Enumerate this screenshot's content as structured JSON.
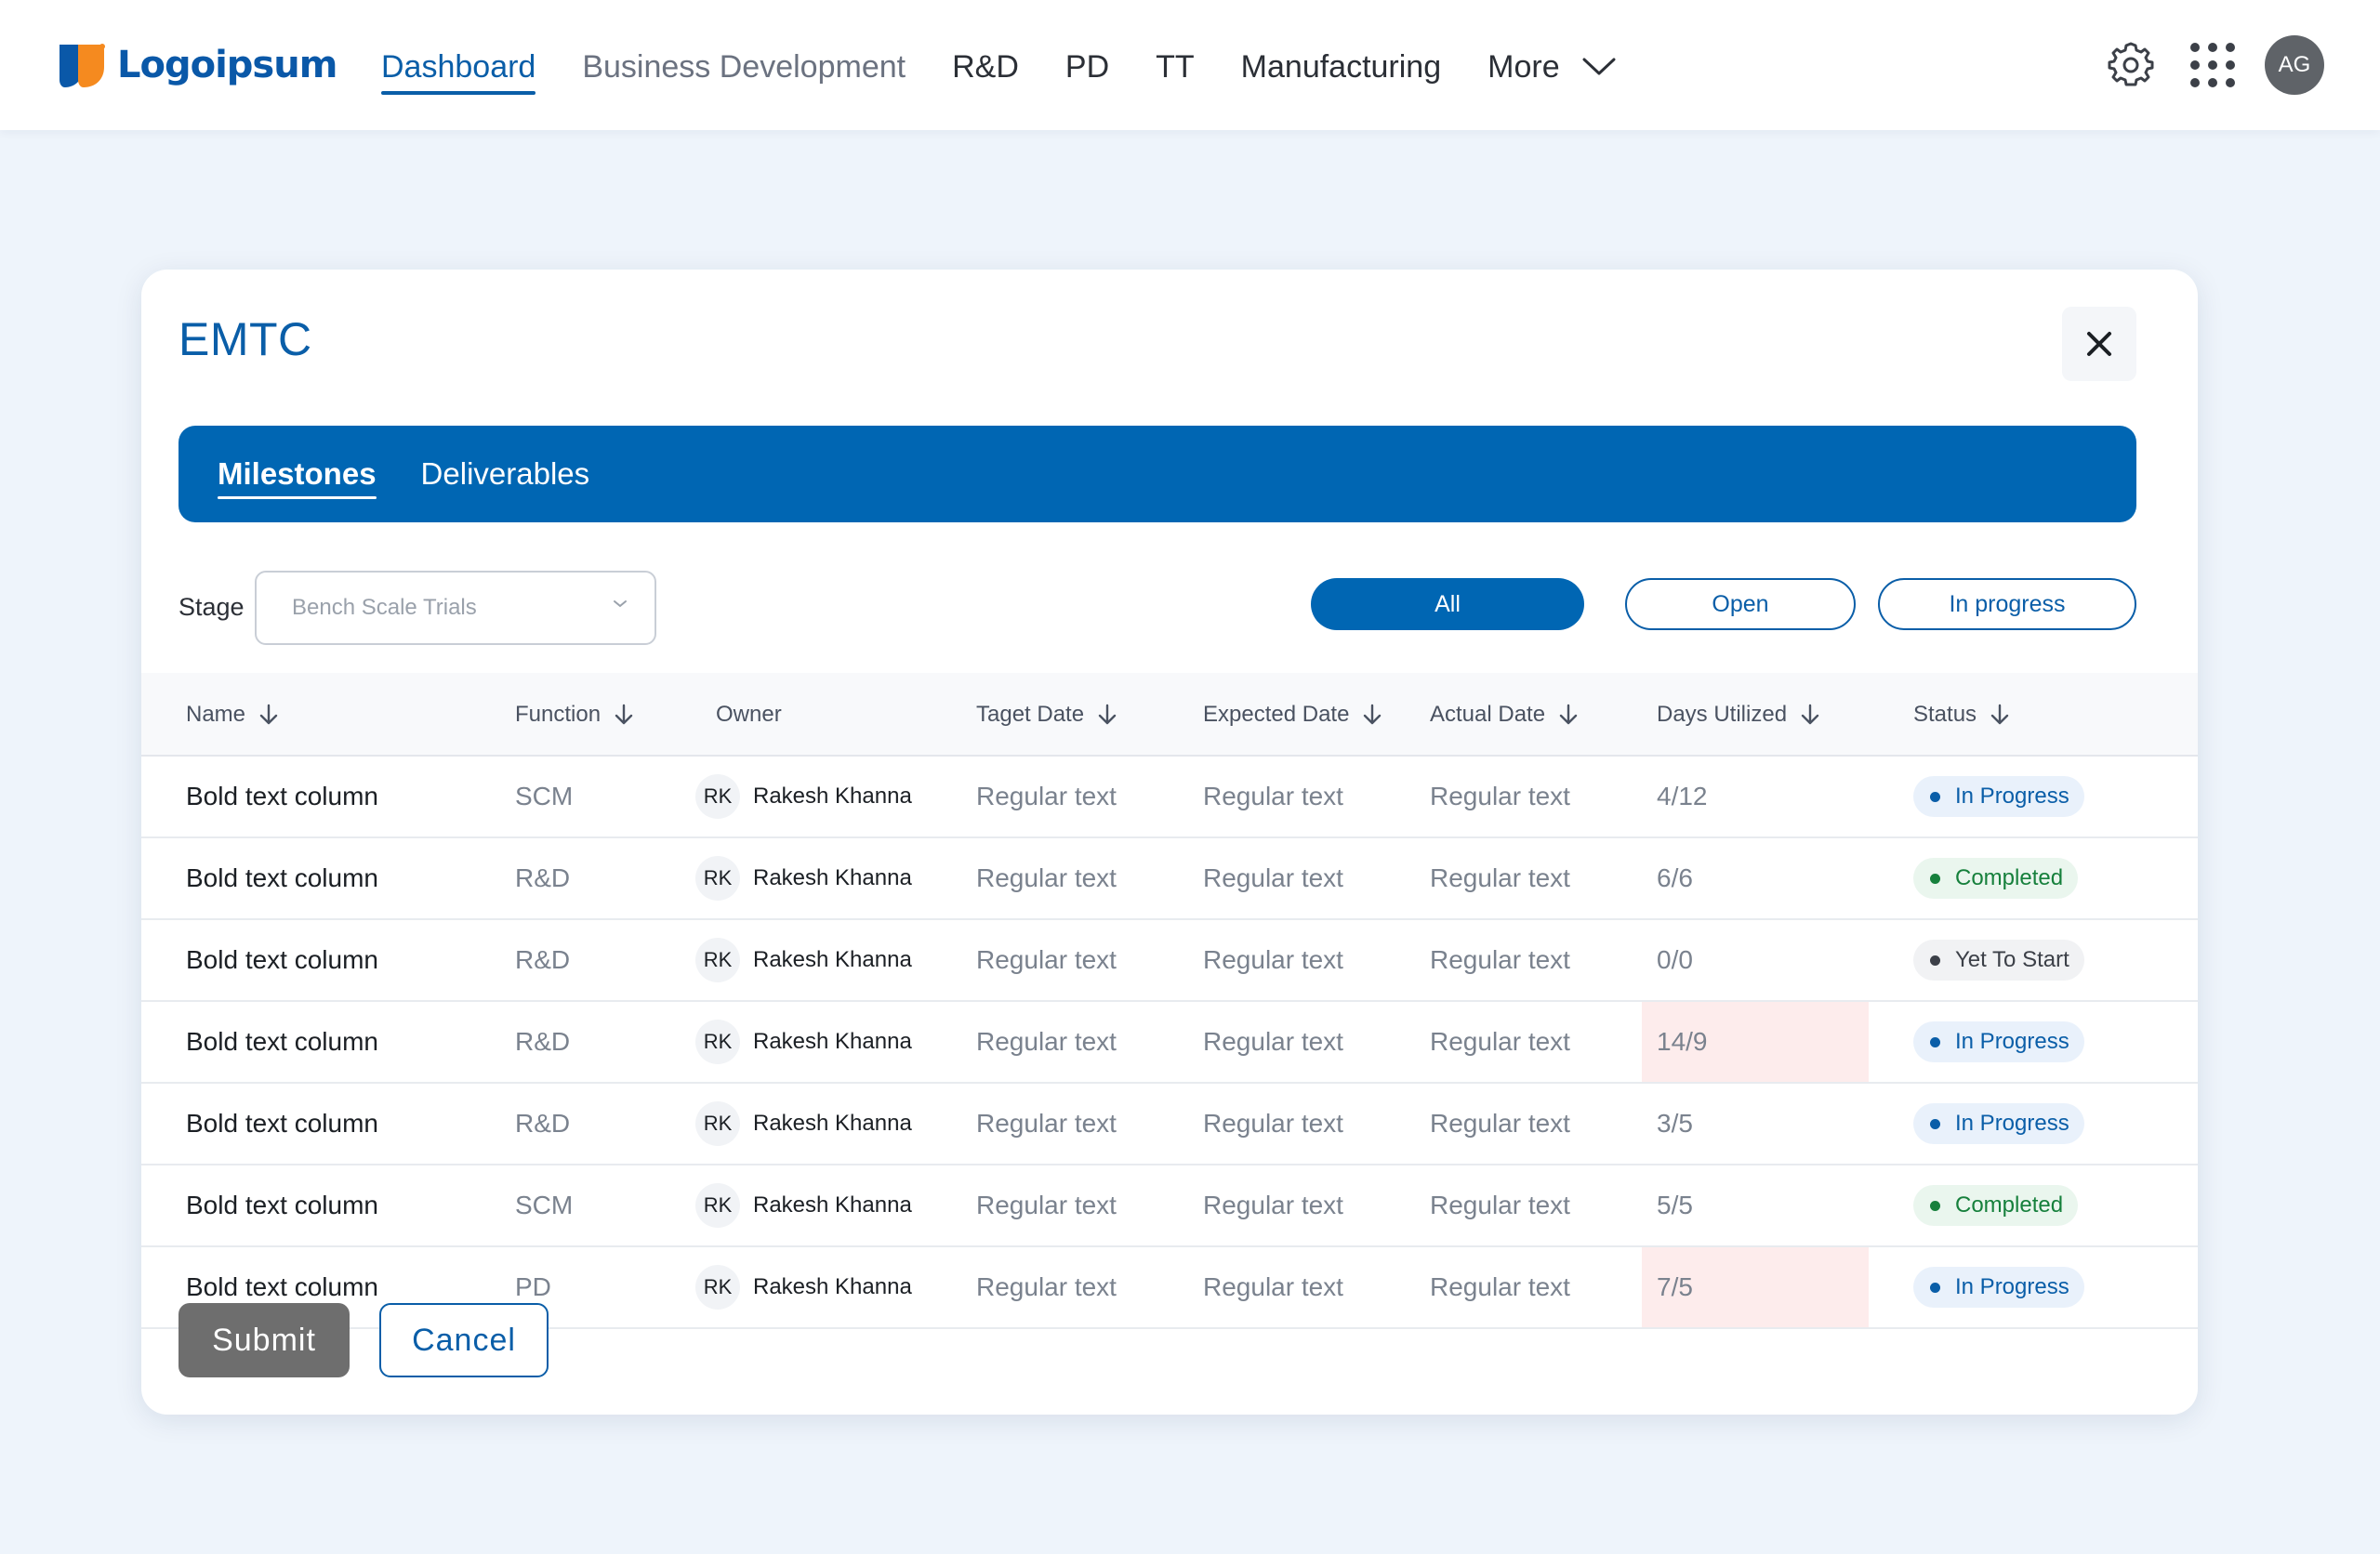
{
  "brand": {
    "name": "Logoipsum"
  },
  "nav": {
    "items": [
      {
        "label": "Dashboard",
        "state": "active"
      },
      {
        "label": "Business Development",
        "state": "inactive"
      },
      {
        "label": "R&D",
        "state": "normal"
      },
      {
        "label": "PD",
        "state": "normal"
      },
      {
        "label": "TT",
        "state": "normal"
      },
      {
        "label": "Manufacturing",
        "state": "normal"
      }
    ],
    "more_label": "More"
  },
  "user": {
    "initials": "AG"
  },
  "icons": {
    "settings": "gear-icon",
    "apps": "grid-icon",
    "close": "close-icon",
    "sort": "arrow-down-icon",
    "dropdown": "chevron-down-icon"
  },
  "colors": {
    "primary": "#0066b3",
    "accent_text": "#0a5ea8",
    "overdue_bg": "#fdecec",
    "in_progress": "#0a5ea8",
    "completed": "#16803c",
    "yet_to_start": "#3c4048"
  },
  "modal": {
    "title": "EMTC",
    "tabs": [
      {
        "label": "Milestones",
        "active": true
      },
      {
        "label": "Deliverables",
        "active": false
      }
    ],
    "stage": {
      "label": "Stage",
      "value": "Bench Scale Trials"
    },
    "filters": [
      {
        "label": "All",
        "active": true
      },
      {
        "label": "Open",
        "active": false
      },
      {
        "label": "In progress",
        "active": false
      }
    ],
    "columns": [
      "Name",
      "Function",
      "Owner",
      "Taget Date",
      "Expected Date",
      "Actual Date",
      "Days Utilized",
      "Status"
    ],
    "rows": [
      {
        "name": "Bold text column",
        "function": "SCM",
        "owner_initials": "RK",
        "owner": "Rakesh Khanna",
        "target": "Regular text",
        "expected": "Regular text",
        "actual": "Regular text",
        "days": "4/12",
        "overdue": false,
        "status": "In Progress",
        "status_kind": "in_progress"
      },
      {
        "name": "Bold text column",
        "function": "R&D",
        "owner_initials": "RK",
        "owner": "Rakesh Khanna",
        "target": "Regular text",
        "expected": "Regular text",
        "actual": "Regular text",
        "days": "6/6",
        "overdue": false,
        "status": "Completed",
        "status_kind": "completed"
      },
      {
        "name": "Bold text column",
        "function": "R&D",
        "owner_initials": "RK",
        "owner": "Rakesh Khanna",
        "target": "Regular text",
        "expected": "Regular text",
        "actual": "Regular text",
        "days": "0/0",
        "overdue": false,
        "status": "Yet To Start",
        "status_kind": "yet_to_start"
      },
      {
        "name": "Bold text column",
        "function": "R&D",
        "owner_initials": "RK",
        "owner": "Rakesh Khanna",
        "target": "Regular text",
        "expected": "Regular text",
        "actual": "Regular text",
        "days": "14/9",
        "overdue": true,
        "status": "In Progress",
        "status_kind": "in_progress"
      },
      {
        "name": "Bold text column",
        "function": "R&D",
        "owner_initials": "RK",
        "owner": "Rakesh Khanna",
        "target": "Regular text",
        "expected": "Regular text",
        "actual": "Regular text",
        "days": "3/5",
        "overdue": false,
        "status": "In Progress",
        "status_kind": "in_progress"
      },
      {
        "name": "Bold text column",
        "function": "SCM",
        "owner_initials": "RK",
        "owner": "Rakesh Khanna",
        "target": "Regular text",
        "expected": "Regular text",
        "actual": "Regular text",
        "days": "5/5",
        "overdue": false,
        "status": "Completed",
        "status_kind": "completed"
      },
      {
        "name": "Bold text column",
        "function": "PD",
        "owner_initials": "RK",
        "owner": "Rakesh Khanna",
        "target": "Regular text",
        "expected": "Regular text",
        "actual": "Regular text",
        "days": "7/5",
        "overdue": true,
        "status": "In Progress",
        "status_kind": "in_progress"
      }
    ],
    "actions": {
      "submit": "Submit",
      "cancel": "Cancel"
    }
  }
}
